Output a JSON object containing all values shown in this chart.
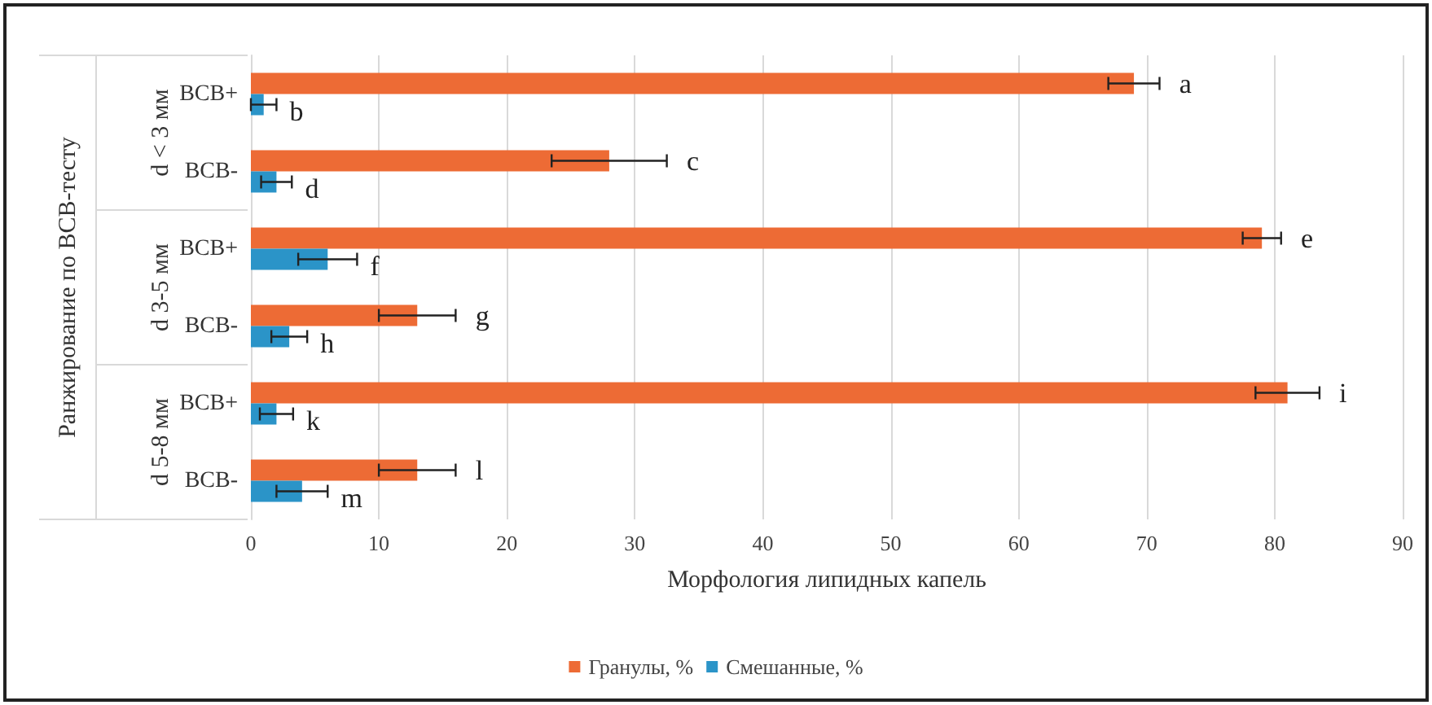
{
  "chart_data": {
    "type": "bar",
    "orientation": "horizontal",
    "xlabel": "Морфология липидных капель",
    "ylabel": "Ранжирование по BCB-тесту",
    "categories": [
      "BCB+",
      "BCB-",
      "BCB+",
      "BCB-",
      "BCB+",
      "BCB-"
    ],
    "annotations": [
      "d < 3 мм",
      "d 3-5 мм",
      "d 5-8 мм"
    ],
    "series": [
      {
        "name": "Гранулы, %",
        "color": "#ed6b35",
        "values": [
          69,
          28,
          79,
          13,
          81,
          13
        ],
        "errors": [
          2,
          4.5,
          1.5,
          3,
          2.5,
          3
        ],
        "value_labels": [
          "a",
          "c",
          "e",
          "g",
          "i",
          "l"
        ]
      },
      {
        "name": "Смешанные, %",
        "color": "#2b94c8",
        "values": [
          1,
          2,
          6,
          3,
          2,
          4
        ],
        "errors": [
          1,
          1.2,
          2.3,
          1.4,
          1.3,
          2
        ],
        "value_labels": [
          "b",
          "d",
          "f",
          "h",
          "k",
          "m"
        ]
      }
    ],
    "xlim": [
      0,
      90
    ],
    "xticks": [
      0,
      10,
      20,
      30,
      40,
      50,
      60,
      70,
      80,
      90
    ],
    "grid": "x",
    "legend": "bottom"
  }
}
